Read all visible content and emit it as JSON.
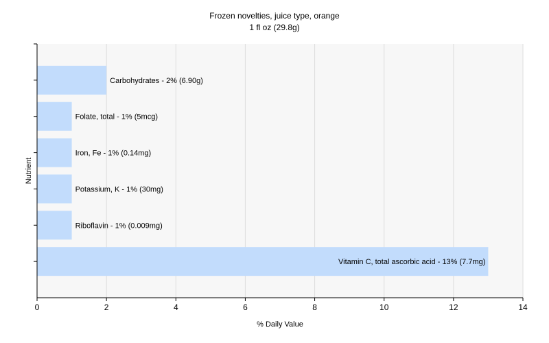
{
  "chart_data": {
    "type": "bar",
    "orientation": "horizontal",
    "title": "Frozen novelties, juice type, orange",
    "subtitle": "1 fl oz (29.8g)",
    "xlabel": "% Daily Value",
    "ylabel": "Nutrient",
    "xlim": [
      0,
      14
    ],
    "xticks": [
      "0",
      "2",
      "4",
      "6",
      "8",
      "10",
      "12",
      "14"
    ],
    "grid": true,
    "bar_color": "#c2dcfc",
    "plot_background": "#f7f7f7",
    "grid_color": "#dddddd",
    "categories": [
      "Carbohydrates",
      "Folate, total",
      "Iron, Fe",
      "Potassium, K",
      "Riboflavin",
      "Vitamin C, total ascorbic acid"
    ],
    "values": [
      2,
      1,
      1,
      1,
      1,
      13
    ],
    "labels": [
      "Carbohydrates - 2% (6.90g)",
      "Folate, total - 1% (5mcg)",
      "Iron, Fe - 1% (0.14mg)",
      "Potassium, K - 1% (30mg)",
      "Riboflavin - 1% (0.009mg)",
      "Vitamin C, total ascorbic acid - 13% (7.7mg)"
    ]
  }
}
